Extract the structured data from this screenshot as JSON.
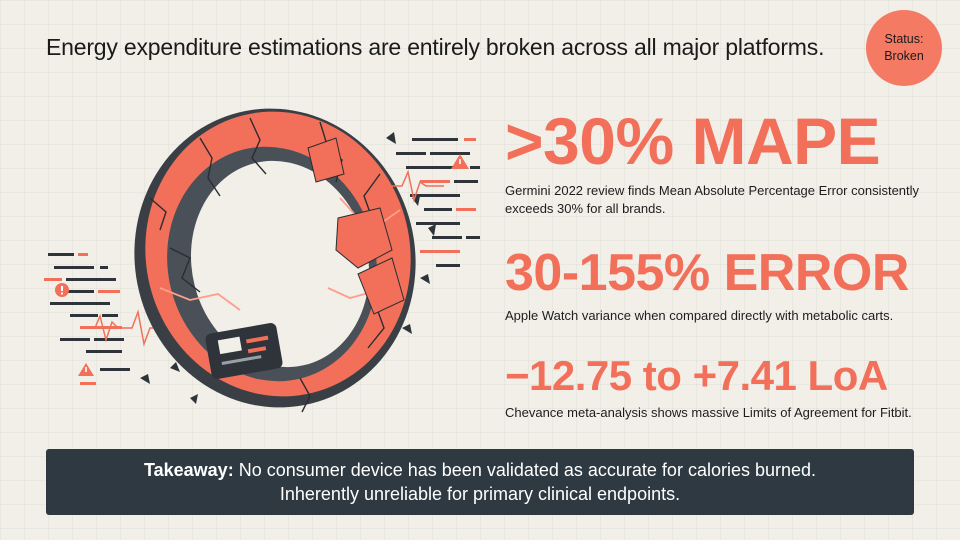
{
  "header": {
    "title": "Energy expenditure estimations are entirely broken across all major platforms."
  },
  "status_badge": {
    "label": "Status:",
    "value": "Broken",
    "color": "#f47a64"
  },
  "illustration": {
    "icon": "cracked-smart-ring",
    "accent_color": "#f26f5a",
    "dark_color": "#3a3f45"
  },
  "stats": [
    {
      "value": ">30% MAPE",
      "description": "Germini 2022 review finds Mean Absolute Percentage Error consistently exceeds 30% for all brands."
    },
    {
      "value": "30-155% ERROR",
      "description": "Apple Watch variance when compared directly with metabolic carts."
    },
    {
      "value": "−12.75 to +7.41 LoA",
      "description": "Chevance meta-analysis shows massive Limits of Agreement for Fitbit."
    }
  ],
  "takeaway": {
    "label": "Takeaway:",
    "line1": " No consumer device has been validated as accurate for calories burned.",
    "line2": "Inherently unreliable for primary clinical endpoints."
  },
  "colors": {
    "background": "#f1efe8",
    "accent": "#f26f5a",
    "takeaway_bg": "#2e3942"
  }
}
